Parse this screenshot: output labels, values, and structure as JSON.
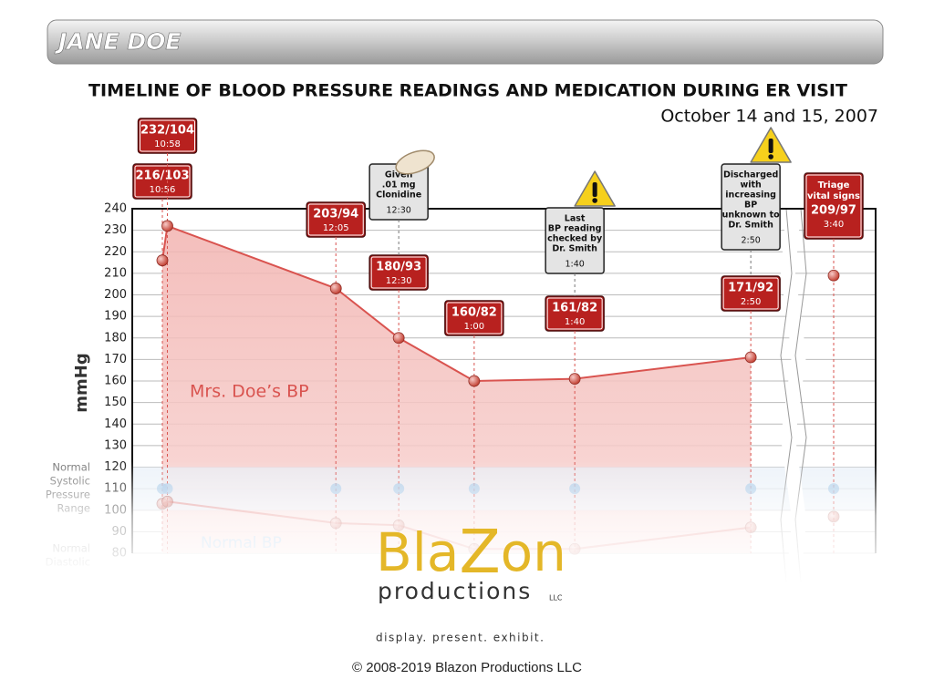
{
  "header": {
    "title": "JANE DOE"
  },
  "chart_data": {
    "type": "line",
    "title": "TIMELINE OF BLOOD PRESSURE READINGS AND MEDICATION DURING ER VISIT",
    "subtitle": "October 14 and 15, 2007",
    "ylabel": "mmHg",
    "ylim": [
      80,
      240
    ],
    "yticks": [
      80,
      90,
      100,
      110,
      120,
      130,
      140,
      150,
      160,
      170,
      180,
      190,
      200,
      210,
      220,
      230,
      240
    ],
    "grid": true,
    "x": [
      "10:56",
      "10:58",
      "12:05",
      "12:30",
      "1:00",
      "1:40",
      "2:50"
    ],
    "series": [
      {
        "name": "Mrs. Doe’s BP",
        "color": "#d9534f",
        "values": [
          216,
          232,
          203,
          180,
          160,
          161,
          171
        ],
        "diastolic": [
          103,
          104,
          94,
          93,
          82,
          82,
          92
        ],
        "value_labels": [
          "216/103",
          "232/104",
          "203/94",
          "180/93",
          "160/82",
          "161/82",
          "171/92"
        ]
      },
      {
        "name": "Normal BP",
        "color": "#9cc3e6",
        "value": 110
      }
    ],
    "triage": {
      "lines": [
        "Triage",
        "vital signs"
      ],
      "value": 209,
      "diastolic": 97,
      "value_label": "209/97",
      "time": "3:40"
    },
    "annotations": [
      {
        "lines": [
          "Given",
          ".01 mg",
          "Clonidine"
        ],
        "time": "12:30"
      },
      {
        "lines": [
          "Last",
          "BP reading",
          "checked by",
          "Dr. Smith"
        ],
        "time": "1:40"
      },
      {
        "lines": [
          "Discharged",
          "with",
          "increasing",
          "BP",
          "unknown to",
          "Dr. Smith"
        ],
        "time": "2:50"
      }
    ],
    "range_labels": {
      "systolic": [
        "Normal",
        "Systolic",
        "Pressure",
        "Range"
      ],
      "diastolic": [
        "Normal",
        "Diastolic"
      ]
    }
  },
  "branding": {
    "logo": [
      "Bla",
      "Z",
      "on"
    ],
    "sub": "productions",
    "llc": "LLC",
    "tagline": "display. present. exhibit.",
    "copyright": "© 2008-2019 Blazon Productions LLC"
  }
}
